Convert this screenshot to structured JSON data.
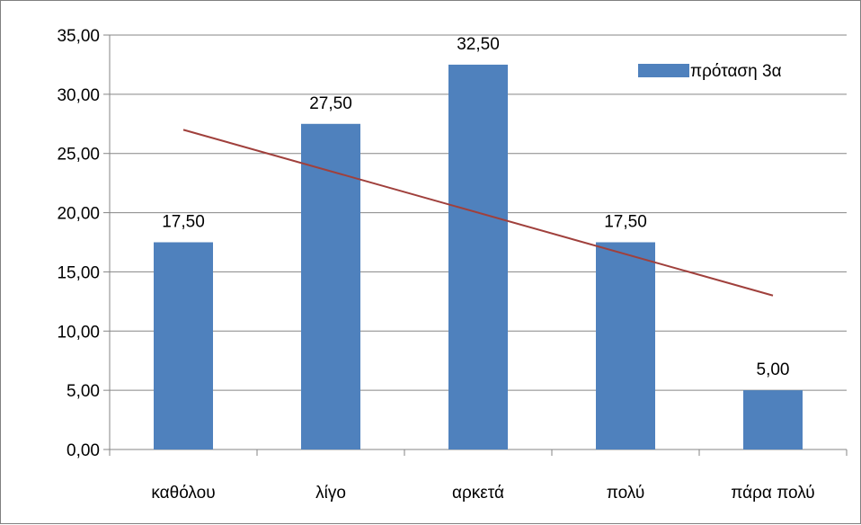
{
  "chart_data": {
    "type": "bar",
    "categories": [
      "καθόλου",
      "λίγο",
      "αρκετά",
      "πολύ",
      "πάρα πολύ"
    ],
    "series": [
      {
        "name": "πρόταση 3α",
        "values": [
          17.5,
          27.5,
          32.5,
          17.5,
          5.0
        ],
        "color": "#4F81BD"
      }
    ],
    "data_labels": [
      "17,50",
      "27,50",
      "32,50",
      "17,50",
      "5,00"
    ],
    "y_tick_labels": [
      "0,00",
      "5,00",
      "10,00",
      "15,00",
      "20,00",
      "25,00",
      "30,00",
      "35,00"
    ],
    "y_ticks": [
      0,
      5,
      10,
      15,
      20,
      25,
      30,
      35
    ],
    "ylim": [
      0,
      35
    ],
    "title": "",
    "xlabel": "",
    "ylabel": "",
    "grid": true,
    "legend_position": "top-right",
    "trendline": {
      "type": "linear",
      "color": "#A0403C"
    },
    "axis_color": "#868686",
    "gridline_color": "#868686"
  }
}
